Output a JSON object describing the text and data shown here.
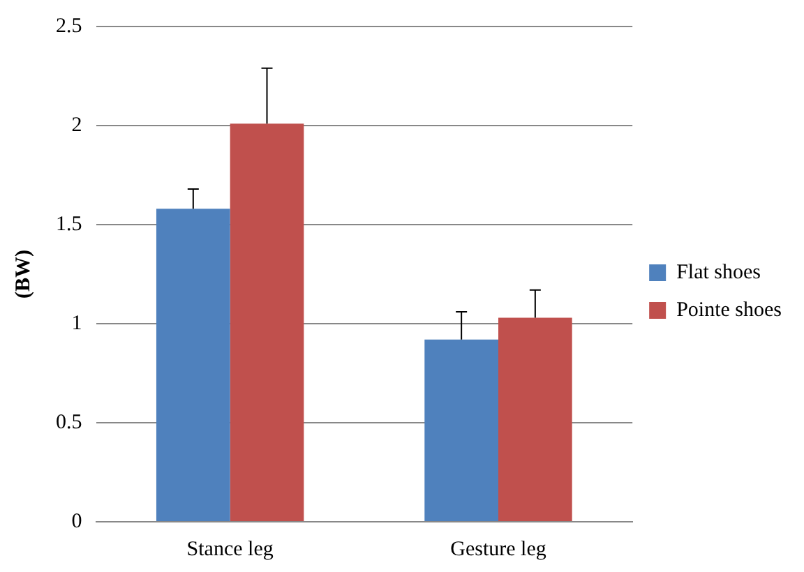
{
  "chart_data": {
    "type": "bar",
    "ylabel": "(BW)",
    "categories": [
      "Stance leg",
      "Gesture leg"
    ],
    "series": [
      {
        "name": "Flat shoes",
        "color": "#4f81bd",
        "values": [
          1.58,
          0.92
        ],
        "errors": [
          [
            1.58,
            1.68
          ],
          [
            0.92,
            1.06
          ]
        ]
      },
      {
        "name": "Pointe shoes",
        "color": "#c0504d",
        "values": [
          2.01,
          1.03
        ],
        "errors": [
          [
            2.01,
            2.29
          ],
          [
            1.03,
            1.17
          ]
        ]
      }
    ],
    "ylim": [
      0,
      2.5
    ],
    "yticks": [
      0,
      0.5,
      1,
      1.5,
      2,
      2.5
    ],
    "grid": "y",
    "legend": "right"
  }
}
